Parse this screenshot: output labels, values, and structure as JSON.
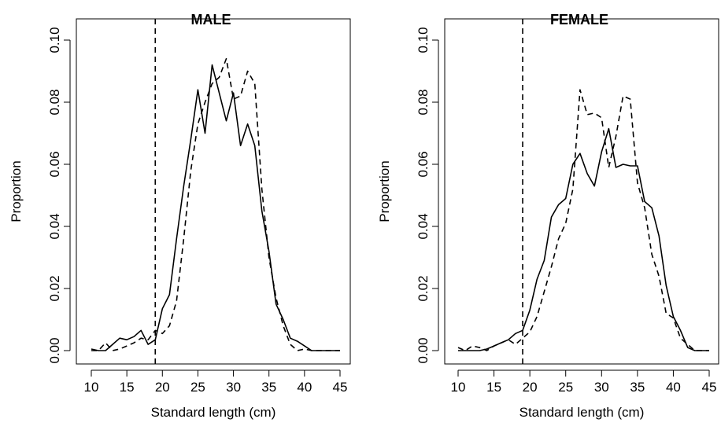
{
  "chart_data": [
    {
      "type": "line",
      "title": "MALE",
      "xlabel": "Standard length (cm)",
      "ylabel": "Proportion",
      "xlim": [
        10,
        45
      ],
      "ylim": [
        0,
        0.1
      ],
      "xticks": [
        10,
        15,
        20,
        25,
        30,
        35,
        40,
        45
      ],
      "xtick_labels": [
        "10",
        "15",
        "20",
        "25",
        "30",
        "35",
        "40",
        "45"
      ],
      "yticks": [
        0,
        0.02,
        0.04,
        0.06,
        0.08,
        0.1
      ],
      "ytick_labels": [
        "0.00",
        "0.02",
        "0.04",
        "0.06",
        "0.08",
        "0.10"
      ],
      "grid": false,
      "reference_line": {
        "x": 19,
        "style": "dashed"
      },
      "series": [
        {
          "style": "solid",
          "x": [
            10,
            11,
            12,
            13,
            14,
            15,
            16,
            17,
            18,
            19,
            20,
            21,
            22,
            23,
            24,
            25,
            26,
            27,
            28,
            29,
            30,
            31,
            32,
            33,
            34,
            35,
            36,
            37,
            38,
            39,
            40,
            41,
            42,
            43,
            44,
            45
          ],
          "y": [
            0.0005,
            0.0,
            0.0,
            0.002,
            0.004,
            0.0035,
            0.0045,
            0.0065,
            0.002,
            0.0035,
            0.0135,
            0.018,
            0.036,
            0.053,
            0.068,
            0.084,
            0.07,
            0.092,
            0.083,
            0.074,
            0.083,
            0.066,
            0.073,
            0.066,
            0.045,
            0.032,
            0.015,
            0.01,
            0.004,
            0.003,
            0.0015,
            0.0,
            0.0,
            0.0,
            0.0,
            0.0
          ]
        },
        {
          "style": "dashed",
          "x": [
            10,
            11,
            12,
            13,
            14,
            15,
            16,
            17,
            18,
            19,
            20,
            21,
            22,
            23,
            24,
            25,
            26,
            27,
            28,
            29,
            30,
            31,
            32,
            33,
            34,
            35,
            36,
            37,
            38,
            39,
            40,
            41,
            42,
            43,
            44,
            45
          ],
          "y": [
            0.0,
            0.0,
            0.0025,
            0.0,
            0.0005,
            0.0015,
            0.0025,
            0.004,
            0.0035,
            0.0065,
            0.0055,
            0.008,
            0.016,
            0.036,
            0.058,
            0.073,
            0.08,
            0.086,
            0.088,
            0.094,
            0.081,
            0.082,
            0.09,
            0.086,
            0.052,
            0.03,
            0.017,
            0.008,
            0.002,
            0.0,
            0.0005,
            0.0,
            0.0,
            0.0,
            0.0,
            0.0
          ]
        }
      ]
    },
    {
      "type": "line",
      "title": "FEMALE",
      "xlabel": "Standard length (cm)",
      "ylabel": "Proportion",
      "xlim": [
        10,
        45
      ],
      "ylim": [
        0,
        0.1
      ],
      "xticks": [
        10,
        15,
        20,
        25,
        30,
        35,
        40,
        45
      ],
      "xtick_labels": [
        "10",
        "15",
        "20",
        "25",
        "30",
        "35",
        "40",
        "45"
      ],
      "yticks": [
        0,
        0.02,
        0.04,
        0.06,
        0.08,
        0.1
      ],
      "ytick_labels": [
        "0.00",
        "0.02",
        "0.04",
        "0.06",
        "0.08",
        "0.10"
      ],
      "grid": false,
      "reference_line": {
        "x": 19,
        "style": "dashed"
      },
      "series": [
        {
          "style": "solid",
          "x": [
            10,
            11,
            12,
            13,
            14,
            15,
            16,
            17,
            18,
            19,
            20,
            21,
            22,
            23,
            24,
            25,
            26,
            27,
            28,
            29,
            30,
            31,
            32,
            33,
            34,
            35,
            36,
            37,
            38,
            39,
            40,
            41,
            42,
            43,
            44,
            45
          ],
          "y": [
            0.0,
            0.0,
            0.0,
            0.0,
            0.0005,
            0.0015,
            0.0025,
            0.0035,
            0.0055,
            0.0065,
            0.013,
            0.023,
            0.029,
            0.043,
            0.047,
            0.049,
            0.06,
            0.0635,
            0.057,
            0.053,
            0.064,
            0.0715,
            0.059,
            0.06,
            0.0595,
            0.0595,
            0.048,
            0.046,
            0.037,
            0.021,
            0.011,
            0.0065,
            0.001,
            0.0,
            0.0,
            0.0
          ]
        },
        {
          "style": "dashed",
          "x": [
            10,
            11,
            12,
            13,
            14,
            15,
            16,
            17,
            18,
            19,
            20,
            21,
            22,
            23,
            24,
            25,
            26,
            27,
            28,
            29,
            30,
            31,
            32,
            33,
            34,
            35,
            36,
            37,
            38,
            39,
            40,
            41,
            42,
            43,
            44,
            45
          ],
          "y": [
            0.001,
            0.0,
            0.0015,
            0.001,
            0.0,
            0.0015,
            0.0025,
            0.0035,
            0.002,
            0.004,
            0.006,
            0.011,
            0.019,
            0.027,
            0.036,
            0.041,
            0.052,
            0.084,
            0.076,
            0.0765,
            0.075,
            0.059,
            0.069,
            0.082,
            0.081,
            0.054,
            0.046,
            0.031,
            0.024,
            0.012,
            0.0105,
            0.004,
            0.002,
            0.0,
            0.0,
            0.0
          ]
        }
      ]
    }
  ]
}
